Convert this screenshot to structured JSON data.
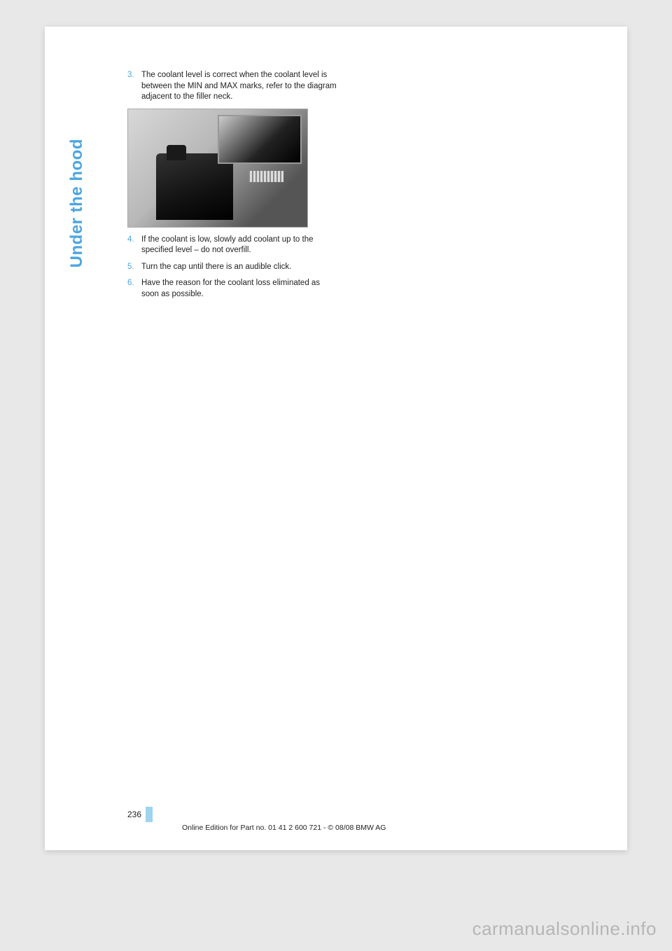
{
  "section_label": "Under the hood",
  "items": [
    {
      "num": "3.",
      "text": "The coolant level is correct when the coolant level is between the MIN and MAX marks, refer to the diagram adjacent to the filler neck."
    },
    {
      "num": "4.",
      "text": "If the coolant is low, slowly add coolant up to the specified level – do not overfill."
    },
    {
      "num": "5.",
      "text": "Turn the cap until there is an audible click."
    },
    {
      "num": "6.",
      "text": "Have the reason for the coolant loss eliminated as soon as possible."
    }
  ],
  "page_number": "236",
  "footer": "Online Edition for Part no. 01 41 2 600 721 - © 08/08 BMW AG",
  "watermark": "carmanualsonline.info",
  "colors": {
    "accent": "#4da6e0",
    "marker": "#9fd4ef",
    "page_bg": "#ffffff",
    "body_bg": "#e8e8e8",
    "text": "#222222"
  }
}
